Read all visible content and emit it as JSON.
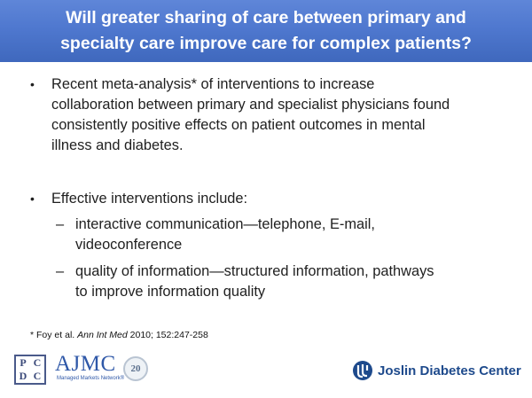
{
  "slide": {
    "title_line1": "Will greater sharing of care between primary and",
    "title_line2": "specialty care improve care for complex patients?",
    "bullet1": {
      "line1": "Recent meta-analysis* of interventions to increase",
      "line2": "collaboration between primary and specialist physicians found",
      "line3": "consistently positive effects on patient outcomes in mental",
      "line4": "illness and diabetes."
    },
    "bullet2": {
      "text": "Effective interventions include:",
      "sub1_line1": "interactive communication—telephone, E-mail,",
      "sub1_line2": "videoconference",
      "sub2_line1": "quality of information—structured information, pathways",
      "sub2_line2": "to improve information quality"
    },
    "bullet_mark": "•",
    "sub_mark": "–",
    "footnote": {
      "prefix": "* Foy et al. ",
      "journal": "Ann Int Med",
      "suffix": " 2010; 152:247-258"
    }
  },
  "logos": {
    "pcdc_letters": [
      "P",
      "C",
      "D",
      "C"
    ],
    "ajmc_text": "AJMC",
    "ajmc_sub": "Managed Markets Network®",
    "badge_text": "20",
    "joslin_text": "Joslin Diabetes Center"
  },
  "colors": {
    "title_bar": "#4f78cf",
    "title_text": "#ffffff",
    "brand_blue": "#1e4a8c"
  }
}
